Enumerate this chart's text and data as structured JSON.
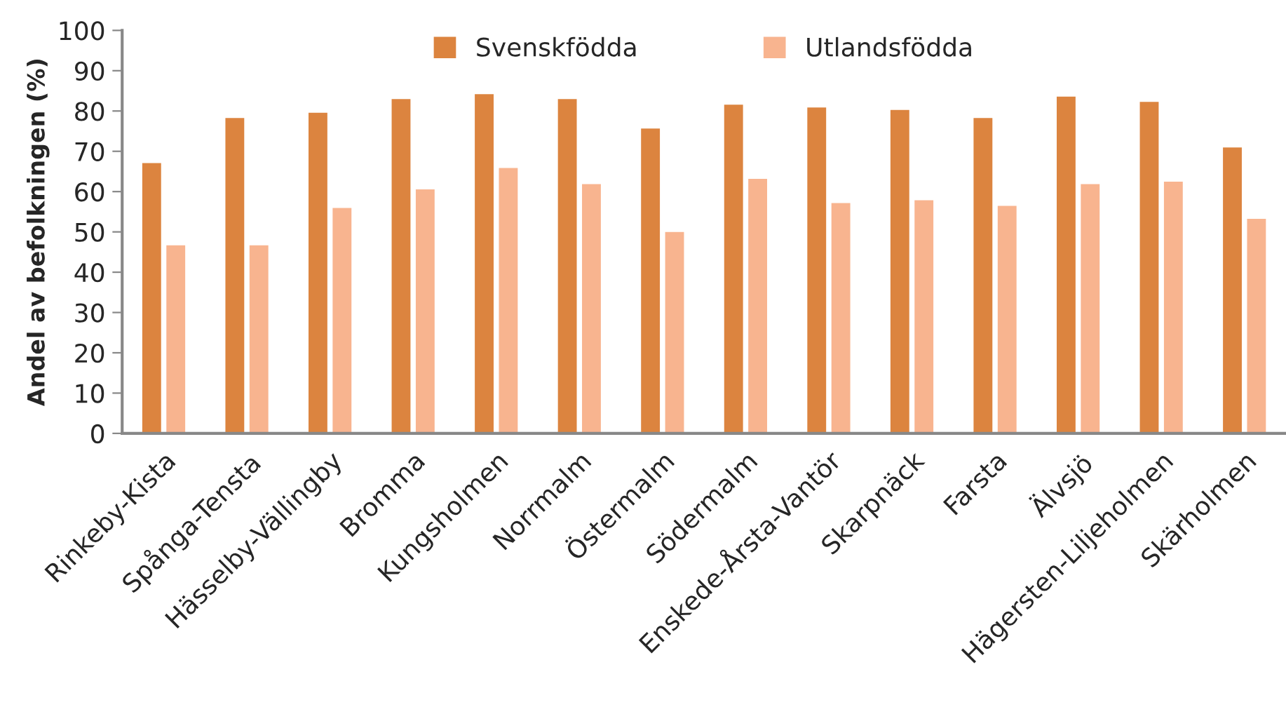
{
  "chart_data": {
    "type": "bar",
    "ylabel": "Andel av befolkningen (%)",
    "categories": [
      "Rinkeby-Kista",
      "Spånga-Tensta",
      "Hässelby-Vällingby",
      "Bromma",
      "Kungsholmen",
      "Norrmalm",
      "Östermalm",
      "Södermalm",
      "Enskede-Årsta-Vantör",
      "Skarpnäck",
      "Farsta",
      "Älvsjö",
      "Hägersten-Liljeholmen",
      "Skärholmen"
    ],
    "series": [
      {
        "name": "Svenskfödda",
        "color": "#dc843f",
        "values": [
          67.3,
          78.5,
          79.8,
          83.2,
          84.4,
          83.2,
          75.9,
          81.8,
          81.1,
          80.5,
          78.5,
          83.8,
          82.5,
          71.2
        ]
      },
      {
        "name": "Utlandsfödda",
        "color": "#f8b48f",
        "values": [
          46.9,
          46.9,
          56.2,
          60.8,
          66.1,
          62.1,
          50.2,
          63.4,
          57.4,
          58.1,
          56.7,
          62.1,
          62.7,
          53.5
        ]
      }
    ],
    "ylim": [
      0,
      100
    ],
    "yticks": [
      0,
      10,
      20,
      30,
      40,
      50,
      60,
      70,
      80,
      90,
      100
    ],
    "grid": false,
    "legend": "top"
  }
}
